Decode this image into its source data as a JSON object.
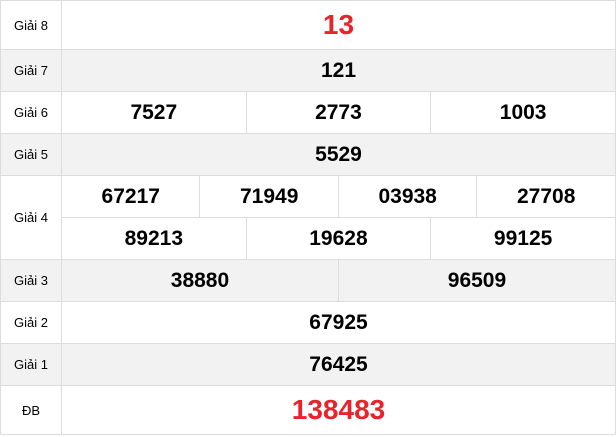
{
  "accent_color": "#e8232b",
  "prizes": {
    "g8": {
      "label": "Giải 8",
      "numbers": [
        "13"
      ]
    },
    "g7": {
      "label": "Giải 7",
      "numbers": [
        "121"
      ]
    },
    "g6": {
      "label": "Giải 6",
      "numbers": [
        "7527",
        "2773",
        "1003"
      ]
    },
    "g5": {
      "label": "Giải 5",
      "numbers": [
        "5529"
      ]
    },
    "g4": {
      "label": "Giải 4",
      "numbers": [
        "67217",
        "71949",
        "03938",
        "27708",
        "89213",
        "19628",
        "99125"
      ]
    },
    "g3": {
      "label": "Giải 3",
      "numbers": [
        "38880",
        "96509"
      ]
    },
    "g2": {
      "label": "Giải 2",
      "numbers": [
        "67925"
      ]
    },
    "g1": {
      "label": "Giải 1",
      "numbers": [
        "76425"
      ]
    },
    "db": {
      "label": "ĐB",
      "numbers": [
        "138483"
      ]
    }
  }
}
